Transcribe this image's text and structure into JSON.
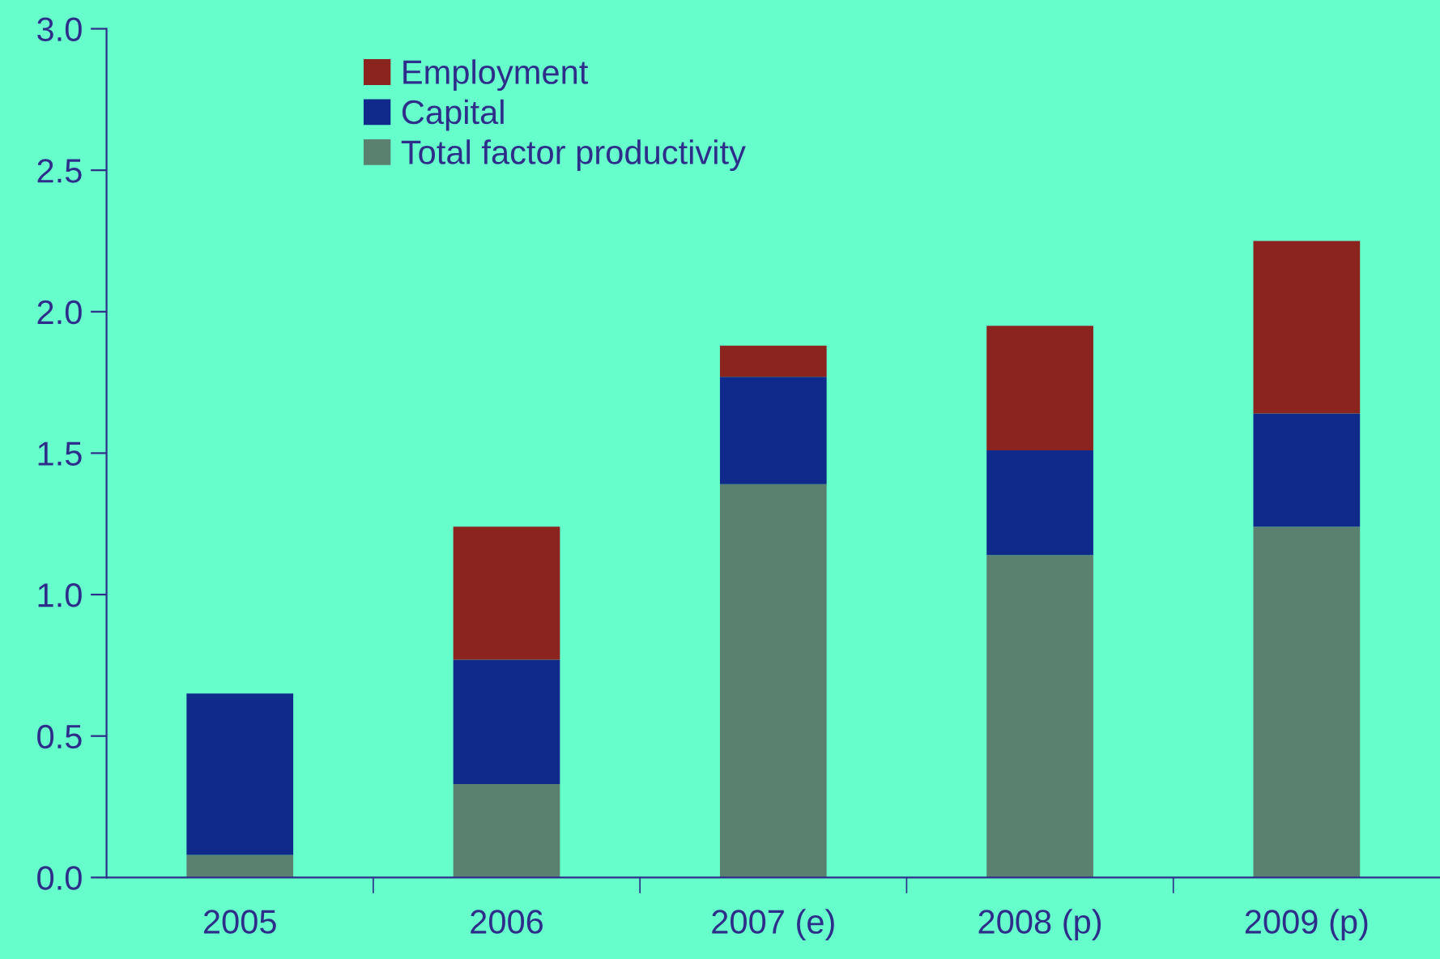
{
  "chart_data": {
    "type": "bar",
    "stacked": true,
    "categories": [
      "2005",
      "2006",
      "2007 (e)",
      "2008 (p)",
      "2009 (p)"
    ],
    "series": [
      {
        "name": "Total factor productivity",
        "color": "#5a8070",
        "values": [
          0.08,
          0.33,
          1.39,
          1.14,
          1.24
        ]
      },
      {
        "name": "Capital",
        "color": "#0f2a8a",
        "values": [
          0.57,
          0.44,
          0.38,
          0.37,
          0.4
        ]
      },
      {
        "name": "Employment",
        "color": "#8b231e",
        "values": [
          null,
          0.47,
          0.11,
          0.44,
          0.61
        ]
      }
    ],
    "ylim": [
      0,
      3.0
    ],
    "yticks": [
      {
        "value": 0,
        "label": "0.0"
      },
      {
        "value": 0.5,
        "label": "0.5"
      },
      {
        "value": 1.0,
        "label": "1.0"
      },
      {
        "value": 1.5,
        "label": "1.5"
      },
      {
        "value": 2.0,
        "label": "2.0"
      },
      {
        "value": 2.5,
        "label": "2.5"
      },
      {
        "value": 3.0,
        "label": "3.0"
      }
    ],
    "grid": false,
    "legend": "top left"
  }
}
